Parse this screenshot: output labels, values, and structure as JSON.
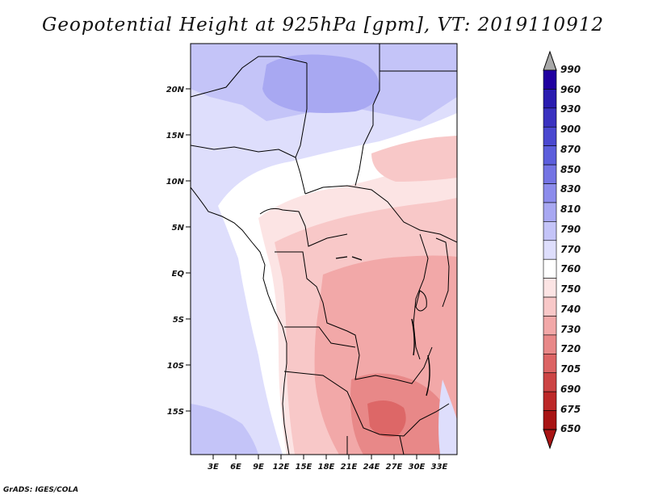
{
  "title": "Geopotential Height at 925hPa [gpm], VT: 2019110912",
  "footer": "GrADS: IGES/COLA",
  "lat_labels": [
    "20N",
    "15N",
    "10N",
    "5N",
    "EQ",
    "5S",
    "10S",
    "15S"
  ],
  "lon_labels": [
    "3E",
    "6E",
    "9E",
    "12E",
    "15E",
    "18E",
    "21E",
    "24E",
    "27E",
    "30E",
    "33E"
  ],
  "colorbar": {
    "levels": [
      "990",
      "960",
      "930",
      "900",
      "870",
      "850",
      "830",
      "810",
      "790",
      "770",
      "760",
      "750",
      "740",
      "730",
      "720",
      "705",
      "690",
      "675",
      "650"
    ],
    "colors": [
      "#2000a0",
      "#2a1cb0",
      "#3a32c0",
      "#4a48d0",
      "#5c5edc",
      "#7474e4",
      "#8c8cec",
      "#a8a8f2",
      "#c4c4f8",
      "#dedefc",
      "#ffffff",
      "#fce4e4",
      "#f8c8c8",
      "#f2a8a8",
      "#e88888",
      "#dc6464",
      "#cc4444",
      "#bc2828",
      "#a81414"
    ]
  }
}
